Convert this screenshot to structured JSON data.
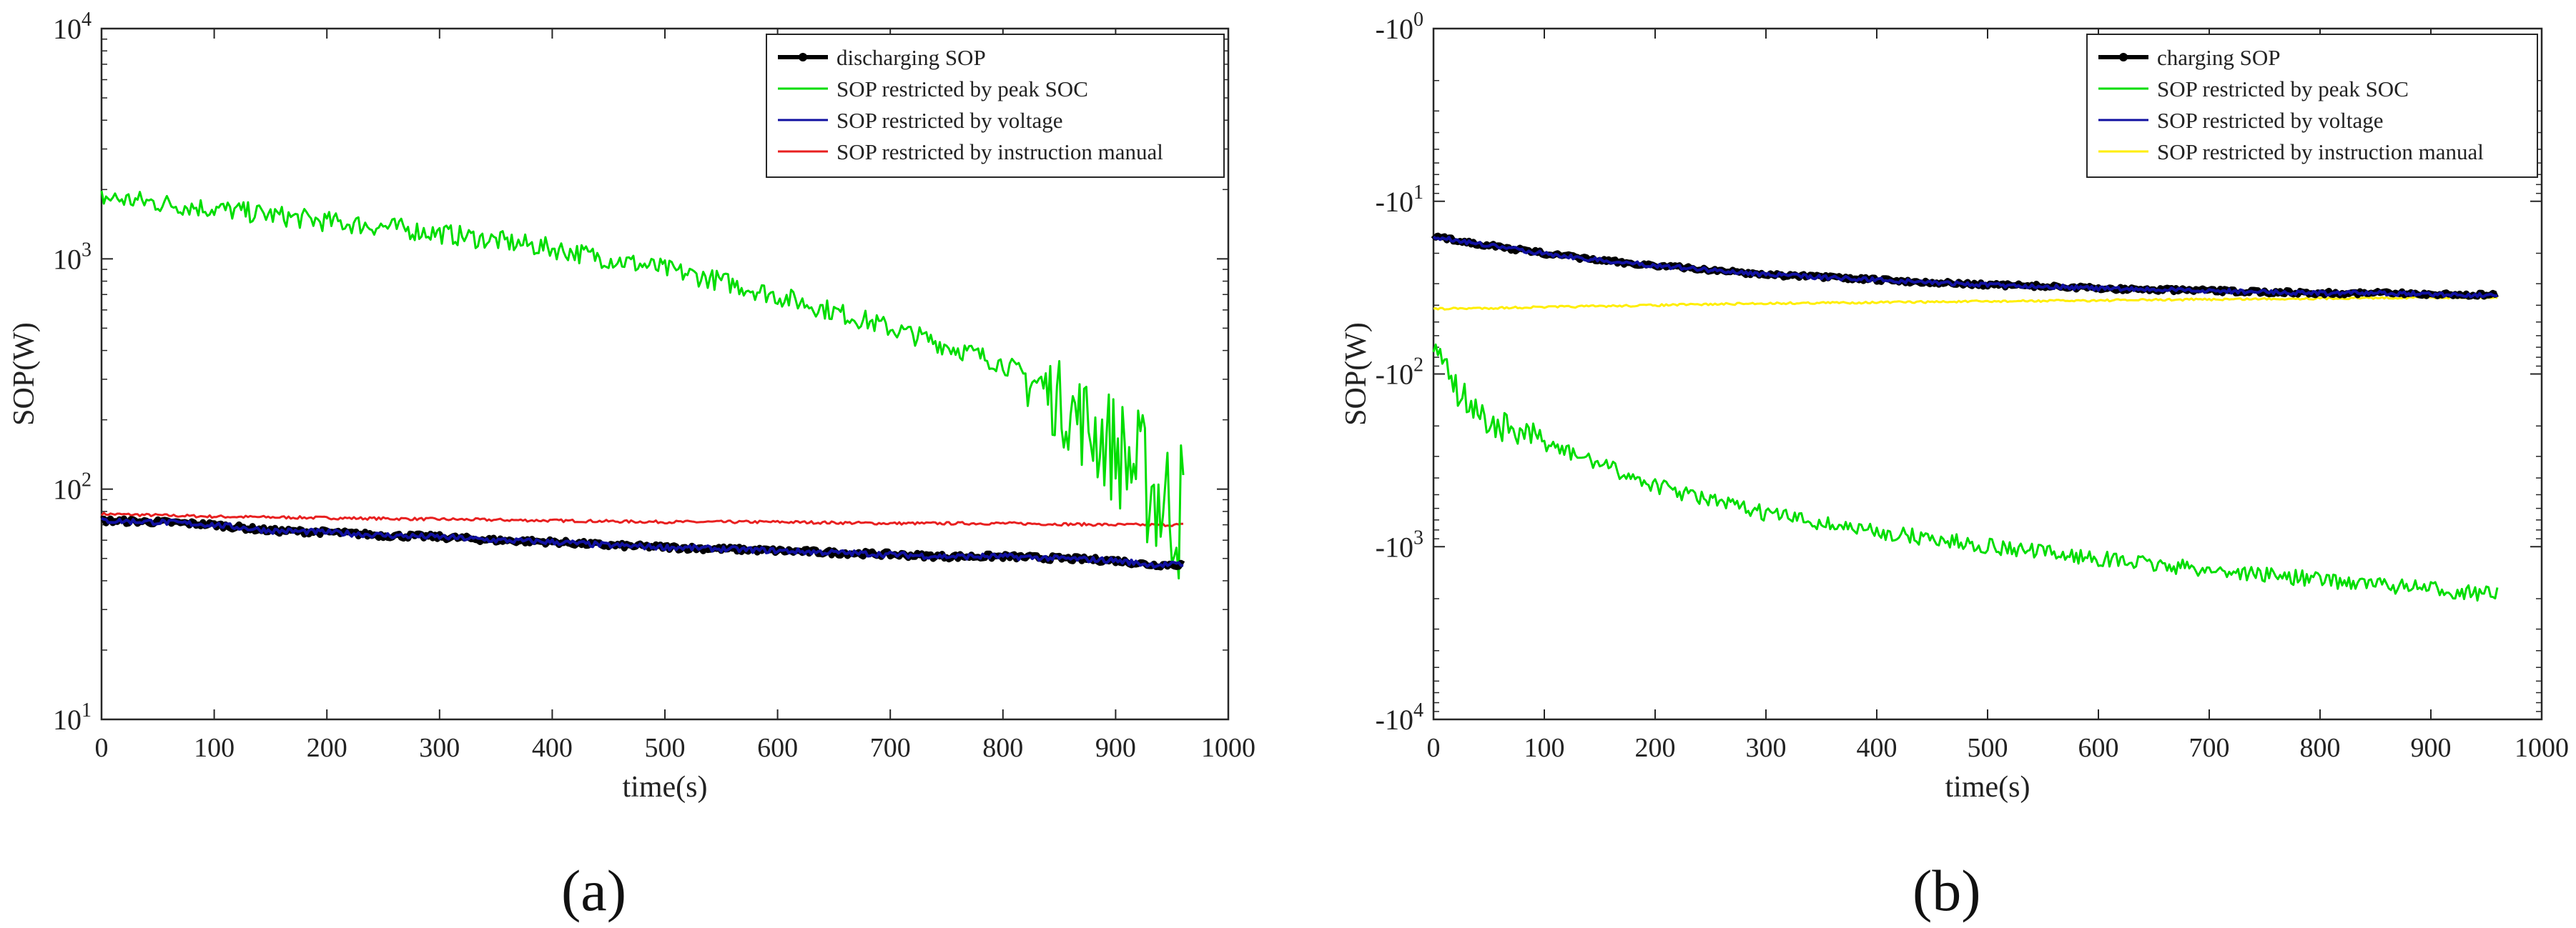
{
  "figure": {
    "panel_labels": [
      "(a)",
      "(b)"
    ]
  },
  "chart_data": [
    {
      "type": "line",
      "panel": "(a)",
      "title": "",
      "xlabel": "time(s)",
      "ylabel": "SOP(W)",
      "xlim": [
        0,
        1000
      ],
      "ylim": [
        10,
        10000
      ],
      "yscale": "log",
      "grid": false,
      "legend_position": "top-right",
      "x_ticks": [
        0,
        100,
        200,
        300,
        400,
        500,
        600,
        700,
        800,
        900,
        1000
      ],
      "x_tick_labels": [
        "0",
        "100",
        "200",
        "300",
        "400",
        "500",
        "600",
        "700",
        "800",
        "900",
        "1000"
      ],
      "y_tick_labels": [
        {
          "value": 10,
          "base": "10",
          "exp": "1"
        },
        {
          "value": 100,
          "base": "10",
          "exp": "2"
        },
        {
          "value": 1000,
          "base": "10",
          "exp": "3"
        },
        {
          "value": 10000,
          "base": "10",
          "exp": "4"
        }
      ],
      "series": [
        {
          "name": "discharging SOP",
          "color": "#000000",
          "marker": "dot",
          "x": [
            0,
            50,
            100,
            150,
            200,
            250,
            300,
            350,
            400,
            450,
            500,
            550,
            600,
            650,
            700,
            750,
            800,
            850,
            900,
            930,
            960
          ],
          "y": [
            73,
            72,
            70,
            66,
            65,
            63,
            62,
            60,
            59,
            57,
            56,
            55,
            54,
            53,
            52,
            51,
            51,
            50,
            49,
            47,
            47
          ]
        },
        {
          "name": "SOP restricted by peak SOC",
          "color": "#00dd00",
          "x": [
            0,
            50,
            100,
            150,
            200,
            250,
            300,
            350,
            400,
            450,
            500,
            550,
            600,
            650,
            700,
            750,
            800,
            820,
            850,
            880,
            900,
            920,
            940,
            960
          ],
          "y": [
            1850,
            1750,
            1650,
            1550,
            1450,
            1380,
            1290,
            1200,
            1110,
            1000,
            900,
            800,
            690,
            590,
            500,
            420,
            350,
            310,
            240,
            180,
            150,
            120,
            90,
            80
          ]
        },
        {
          "name": "SOP restricted by voltage",
          "color": "#1010a0",
          "x": [
            0,
            50,
            100,
            150,
            200,
            250,
            300,
            350,
            400,
            450,
            500,
            550,
            600,
            650,
            700,
            750,
            800,
            850,
            900,
            930,
            960
          ],
          "y": [
            73,
            72,
            70,
            66,
            65,
            63,
            62,
            60,
            59,
            57,
            56,
            55,
            54,
            53,
            52,
            51,
            51,
            50,
            49,
            47,
            47
          ]
        },
        {
          "name": "SOP restricted by instruction manual",
          "color": "#e82020",
          "x": [
            0,
            100,
            200,
            300,
            400,
            500,
            600,
            700,
            800,
            900,
            960
          ],
          "y": [
            78,
            76,
            75,
            74,
            73,
            72,
            72,
            71,
            71,
            70,
            70
          ]
        }
      ]
    },
    {
      "type": "line",
      "panel": "(b)",
      "title": "",
      "xlabel": "time(s)",
      "ylabel": "SOP(W)",
      "xlim": [
        0,
        1000
      ],
      "ylim": [
        -1,
        -10000
      ],
      "yscale": "log (negative values, magnitude increases downward)",
      "grid": false,
      "legend_position": "top-right",
      "x_ticks": [
        0,
        100,
        200,
        300,
        400,
        500,
        600,
        700,
        800,
        900,
        1000
      ],
      "x_tick_labels": [
        "0",
        "100",
        "200",
        "300",
        "400",
        "500",
        "600",
        "700",
        "800",
        "900",
        "1000"
      ],
      "y_tick_labels": [
        {
          "value": -1,
          "base": "-10",
          "exp": "0"
        },
        {
          "value": -10,
          "base": "-10",
          "exp": "1"
        },
        {
          "value": -100,
          "base": "-10",
          "exp": "2"
        },
        {
          "value": -1000,
          "base": "-10",
          "exp": "3"
        },
        {
          "value": -10000,
          "base": "-10",
          "exp": "4"
        }
      ],
      "series": [
        {
          "name": "charging SOP",
          "color": "#000000",
          "marker": "dot",
          "x": [
            0,
            50,
            100,
            150,
            200,
            250,
            300,
            350,
            400,
            450,
            500,
            550,
            600,
            650,
            700,
            750,
            800,
            850,
            900,
            960
          ],
          "y": [
            -16,
            -18,
            -20,
            -22,
            -23.5,
            -25,
            -26.5,
            -27.5,
            -28.5,
            -29.5,
            -30.5,
            -31,
            -32,
            -32.5,
            -33,
            -33.5,
            -34,
            -34,
            -34.5,
            -35
          ]
        },
        {
          "name": "SOP restricted by peak SOC",
          "color": "#00dd00",
          "x": [
            0,
            10,
            20,
            50,
            100,
            150,
            200,
            250,
            300,
            350,
            400,
            450,
            500,
            550,
            600,
            650,
            700,
            750,
            800,
            850,
            900,
            960
          ],
          "y": [
            -80,
            -70,
            -120,
            -190,
            -250,
            -330,
            -440,
            -540,
            -640,
            -730,
            -820,
            -900,
            -990,
            -1080,
            -1170,
            -1270,
            -1360,
            -1450,
            -1550,
            -1650,
            -1760,
            -1900
          ]
        },
        {
          "name": "SOP restricted by voltage",
          "color": "#1010a0",
          "x": [
            0,
            50,
            100,
            150,
            200,
            250,
            300,
            350,
            400,
            450,
            500,
            550,
            600,
            650,
            700,
            750,
            800,
            850,
            900,
            960
          ],
          "y": [
            -16,
            -18,
            -20,
            -22,
            -23.5,
            -25,
            -26.5,
            -27.5,
            -28.5,
            -29.5,
            -30.5,
            -31,
            -32,
            -32.5,
            -33,
            -33.5,
            -34,
            -34,
            -34.5,
            -35
          ]
        },
        {
          "name": "SOP restricted by instruction manual",
          "color": "#ffee00",
          "x": [
            0,
            100,
            200,
            300,
            400,
            500,
            600,
            700,
            800,
            900,
            960
          ],
          "y": [
            -42,
            -41,
            -40,
            -39,
            -38.5,
            -38,
            -37.5,
            -37,
            -36.5,
            -36,
            -36
          ]
        }
      ]
    }
  ]
}
